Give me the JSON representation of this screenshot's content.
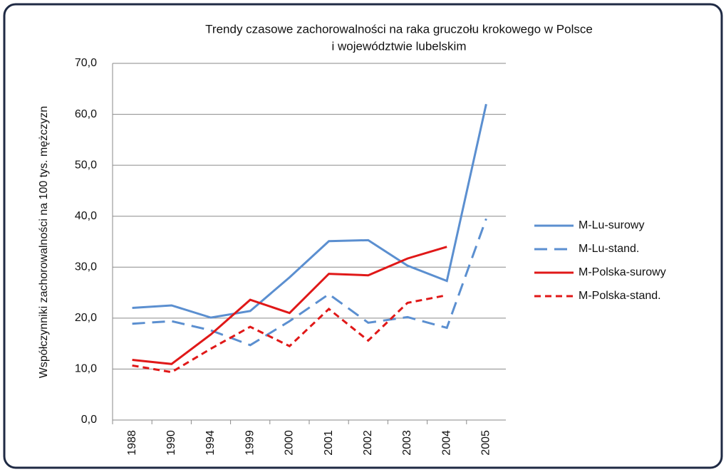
{
  "chart_data": {
    "type": "line",
    "title": [
      "Trendy czasowe zachorowalności na raka gruczołu krokowego w Polsce",
      "i województwie lubelskim"
    ],
    "y_label": "Współczynniki zachorowalności na 100 tys. mężczyzn",
    "categories": [
      "1988",
      "1990",
      "1994",
      "1999",
      "2000",
      "2001",
      "2002",
      "2003",
      "2004",
      "2005"
    ],
    "series": [
      {
        "name": "M-Lu-surowy",
        "color": "#5b8fd0",
        "style": "solid",
        "values": [
          22.0,
          22.5,
          20.1,
          21.4,
          28.0,
          35.1,
          35.3,
          30.3,
          27.3,
          62.0
        ]
      },
      {
        "name": "M-Lu-stand.",
        "color": "#5b8fd0",
        "style": "dashed",
        "values": [
          18.9,
          19.4,
          17.6,
          14.7,
          19.4,
          24.7,
          19.1,
          20.2,
          18.1,
          39.5
        ]
      },
      {
        "name": "M-Polska-surowy",
        "color": "#e01818",
        "style": "solid",
        "values": [
          11.8,
          11.0,
          16.8,
          23.6,
          21.0,
          28.7,
          28.4,
          31.7,
          34.0,
          null
        ]
      },
      {
        "name": "M-Polska-stand.",
        "color": "#e01818",
        "style": "dotted",
        "values": [
          10.7,
          9.4,
          14.0,
          18.3,
          14.5,
          21.8,
          15.6,
          23.0,
          24.5,
          null
        ]
      }
    ],
    "ylim": [
      0,
      70
    ],
    "yticks": [
      {
        "value": 0,
        "label": "0,0"
      },
      {
        "value": 10,
        "label": "10,0"
      },
      {
        "value": 20,
        "label": "20,0"
      },
      {
        "value": 30,
        "label": "30,0"
      },
      {
        "value": 40,
        "label": "40,0"
      },
      {
        "value": 50,
        "label": "50,0"
      },
      {
        "value": 60,
        "label": "60,0"
      },
      {
        "value": 70,
        "label": "70,0"
      }
    ],
    "grid": true,
    "legend": "right"
  }
}
